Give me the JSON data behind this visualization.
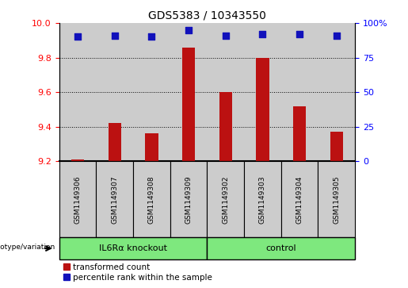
{
  "title": "GDS5383 / 10343550",
  "samples": [
    "GSM1149306",
    "GSM1149307",
    "GSM1149308",
    "GSM1149309",
    "GSM1149302",
    "GSM1149303",
    "GSM1149304",
    "GSM1149305"
  ],
  "red_values": [
    9.21,
    9.42,
    9.36,
    9.86,
    9.6,
    9.8,
    9.52,
    9.37
  ],
  "blue_values": [
    90,
    91,
    90,
    95,
    91,
    92,
    92,
    91
  ],
  "ylim_left": [
    9.2,
    10.0
  ],
  "ylim_right": [
    0,
    100
  ],
  "yticks_left": [
    9.2,
    9.4,
    9.6,
    9.8,
    10.0
  ],
  "yticks_right": [
    0,
    25,
    50,
    75,
    100
  ],
  "ytick_labels_right": [
    "0",
    "25",
    "50",
    "75",
    "100%"
  ],
  "groups": [
    {
      "label": "IL6Rα knockout",
      "start": 0,
      "end": 4,
      "color": "#7EE87E"
    },
    {
      "label": "control",
      "start": 4,
      "end": 8,
      "color": "#7EE87E"
    }
  ],
  "group_label": "genotype/variation",
  "legend_red": "transformed count",
  "legend_blue": "percentile rank within the sample",
  "bar_color": "#BB1111",
  "dot_color": "#1111BB",
  "col_bg_color": "#CCCCCC",
  "plot_bg": "#FFFFFF",
  "bar_width": 0.35,
  "dot_size": 35,
  "title_fontsize": 10,
  "tick_fontsize": 8,
  "label_fontsize": 7.5
}
